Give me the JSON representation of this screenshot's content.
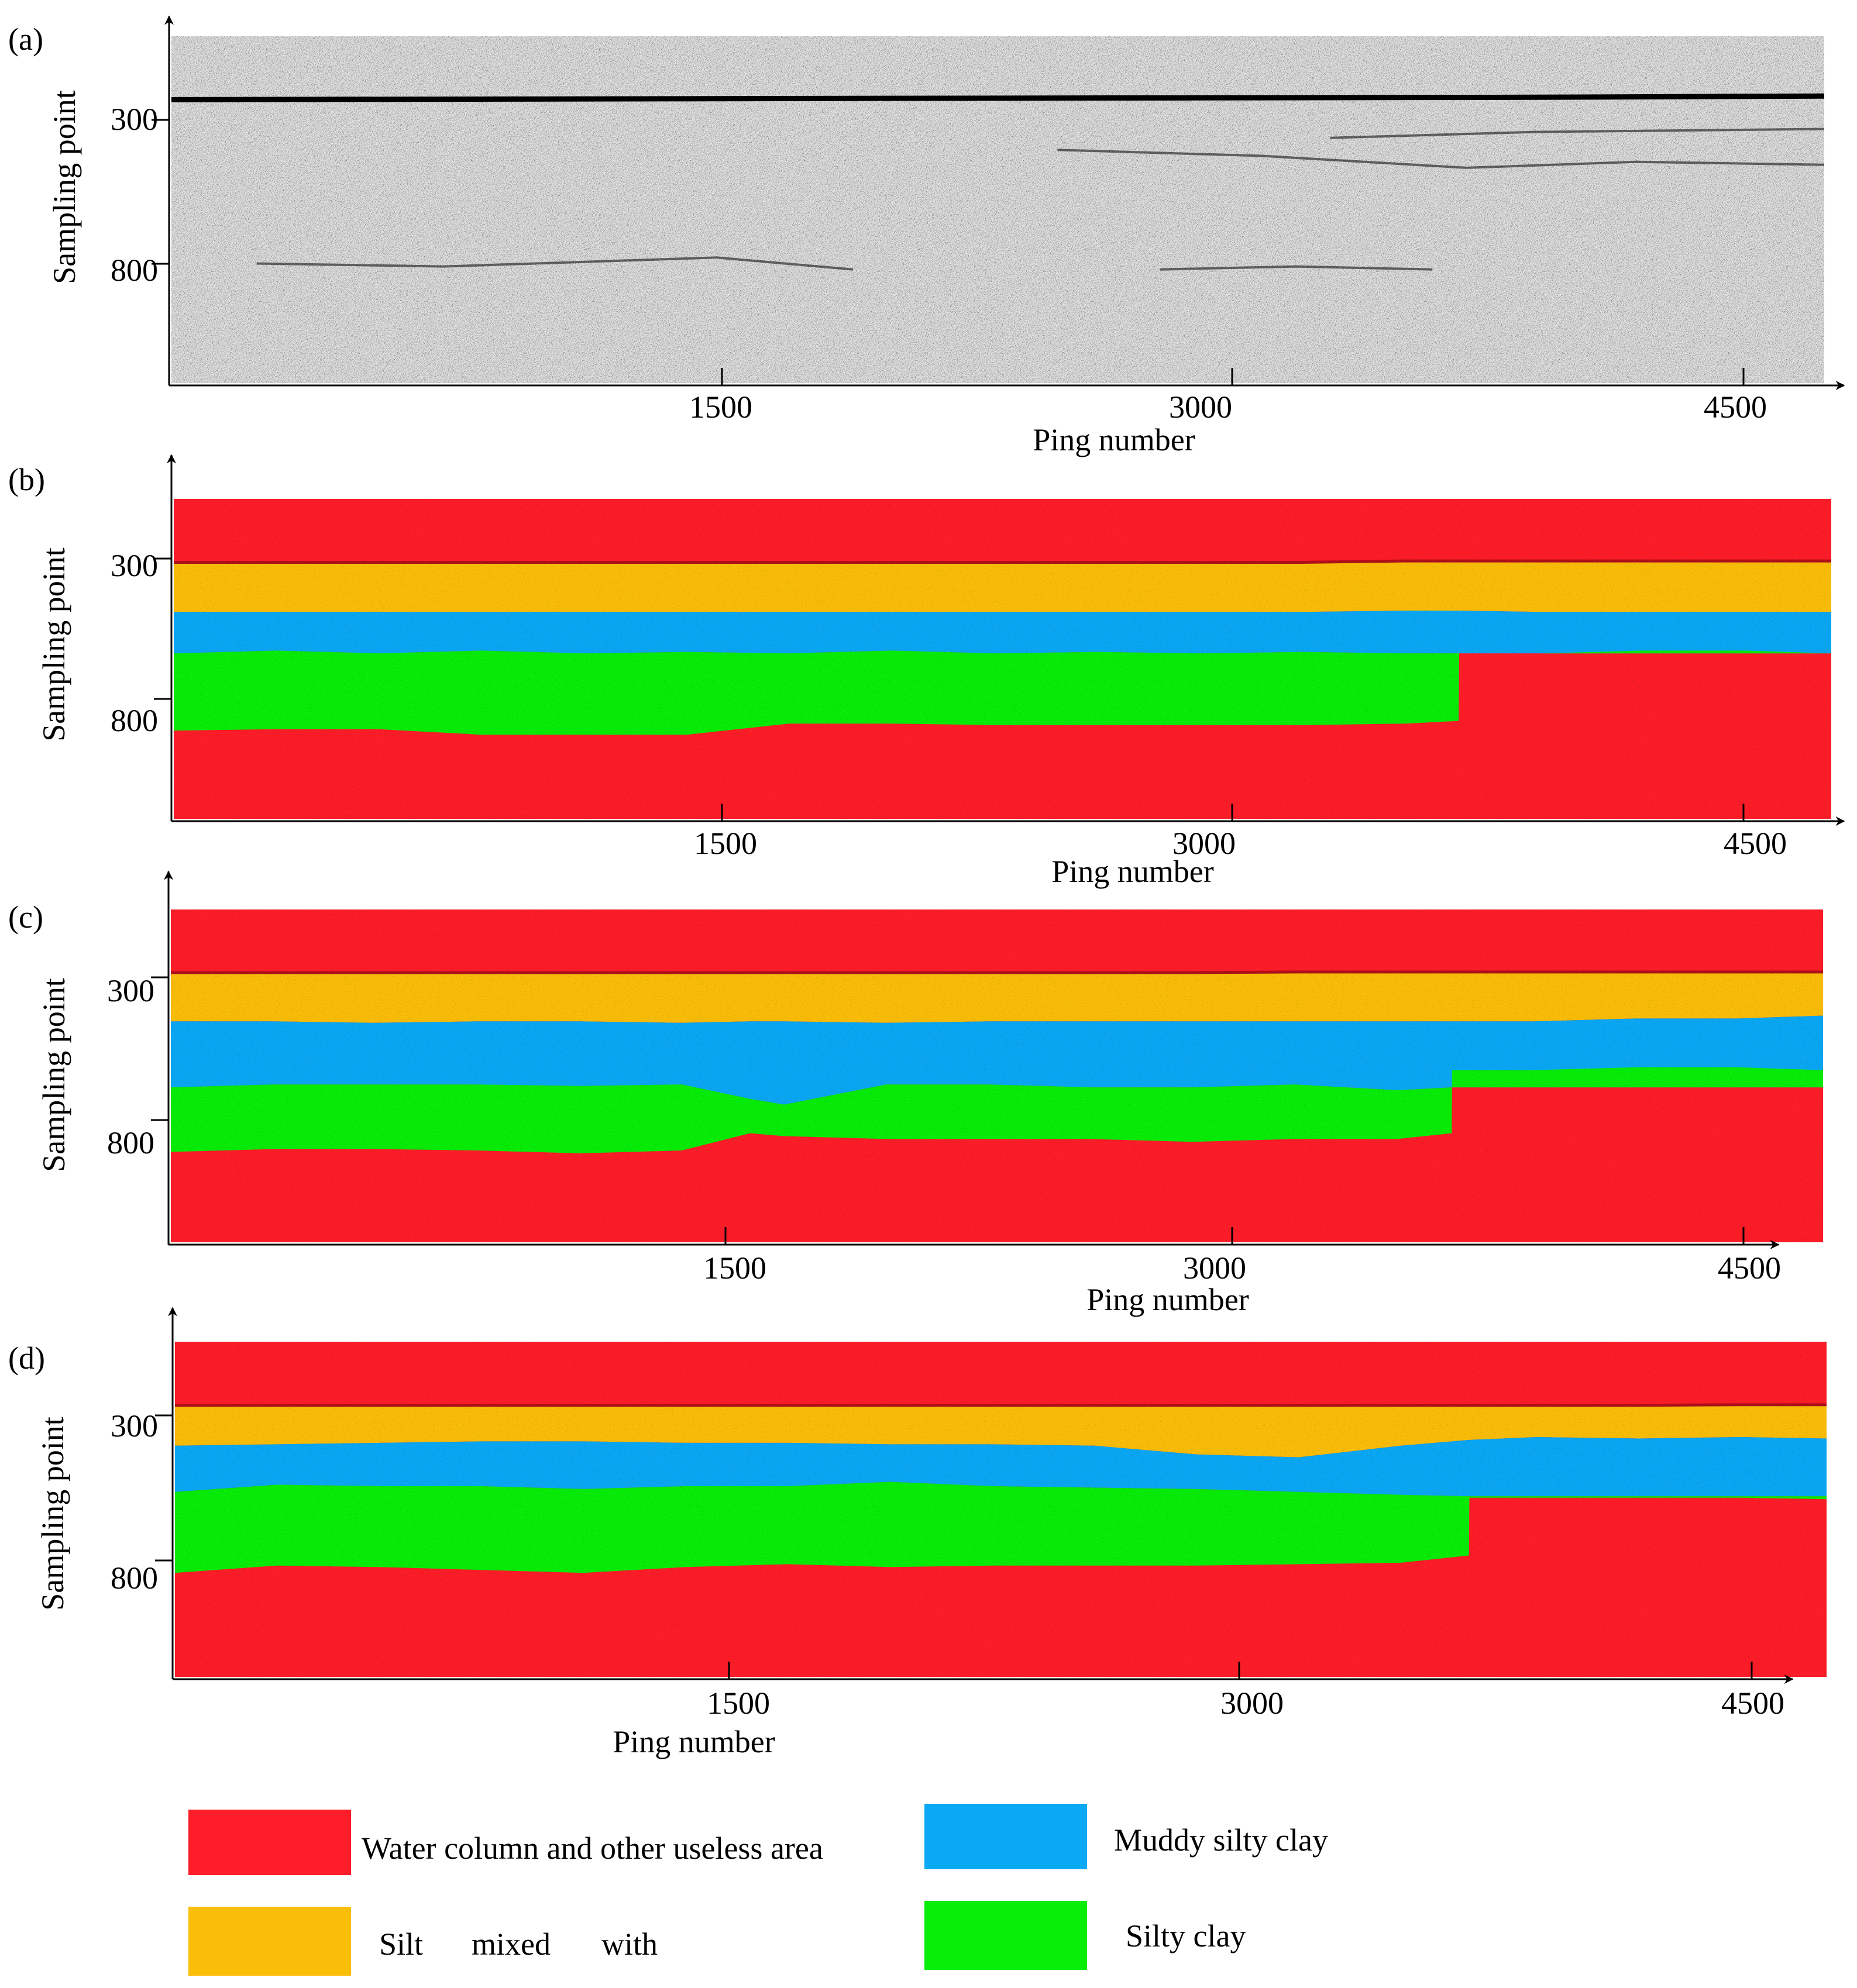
{
  "chart_data": [
    {
      "type": "heatmap",
      "panel": "(a)",
      "style": "grayscale",
      "title": "",
      "xlabel": "Ping number",
      "ylabel": "Sampling point",
      "xticks": [
        1500,
        3000,
        4500
      ],
      "yticks": [
        300,
        800
      ],
      "xlim": [
        0,
        4850
      ],
      "ylim": [
        1200,
        40
      ],
      "reflectors": [
        {
          "name": "seafloor",
          "x": [
            0,
            1000,
            2000,
            3000,
            4000,
            4850
          ],
          "y": [
            252,
            250,
            248,
            246,
            244,
            240
          ]
        },
        {
          "name": "subbottom-1",
          "x": [
            2600,
            3200,
            3800,
            4300,
            4850
          ],
          "y": [
            420,
            440,
            480,
            460,
            470
          ]
        },
        {
          "name": "subbottom-2",
          "x": [
            3400,
            4000,
            4850
          ],
          "y": [
            380,
            360,
            350
          ]
        },
        {
          "name": "deep-1",
          "x": [
            250,
            800,
            1600,
            2000
          ],
          "y": [
            800,
            810,
            780,
            820
          ]
        },
        {
          "name": "deep-2",
          "x": [
            2900,
            3300,
            3700
          ],
          "y": [
            820,
            810,
            820
          ]
        }
      ]
    },
    {
      "type": "heatmap",
      "panel": "(b)",
      "style": "classification",
      "xlabel": "Ping number",
      "ylabel": "Sampling point",
      "xticks": [
        1500,
        3000,
        4500
      ],
      "yticks": [
        300,
        800
      ],
      "xlim": [
        0,
        4850
      ],
      "ylim": [
        1200,
        40
      ],
      "layer_x": [
        0,
        300,
        600,
        900,
        1200,
        1500,
        1800,
        2100,
        2400,
        2700,
        3000,
        3300,
        3600,
        3760,
        3761,
        4000,
        4300,
        4600,
        4850
      ],
      "boundaries": {
        "water_bottom": [
          270,
          270,
          270,
          270,
          270,
          270,
          270,
          270,
          270,
          270,
          270,
          270,
          265,
          265,
          265,
          265,
          265,
          265,
          265
        ],
        "silt_bottom": [
          450,
          450,
          450,
          450,
          450,
          450,
          450,
          450,
          450,
          450,
          450,
          450,
          445,
          445,
          445,
          450,
          450,
          450,
          450
        ],
        "muddy_bottom": [
          600,
          590,
          600,
          590,
          600,
          595,
          600,
          590,
          600,
          595,
          600,
          595,
          600,
          600,
          600,
          600,
          600,
          600,
          600
        ],
        "silty_bottom": [
          880,
          875,
          875,
          895,
          895,
          895,
          855,
          855,
          860,
          860,
          860,
          860,
          855,
          845,
          600,
          600,
          590,
          590,
          600
        ]
      }
    },
    {
      "type": "heatmap",
      "panel": "(c)",
      "style": "classification",
      "xlabel": "Ping number",
      "ylabel": "Sampling point",
      "xticks": [
        1500,
        3000,
        4500
      ],
      "yticks": [
        300,
        800
      ],
      "xlim": [
        0,
        4850
      ],
      "ylim": [
        1200,
        40
      ],
      "layer_x": [
        0,
        300,
        600,
        900,
        1200,
        1500,
        1700,
        1800,
        2100,
        2400,
        2700,
        3000,
        3300,
        3600,
        3760,
        3761,
        4000,
        4300,
        4600,
        4850
      ],
      "boundaries": {
        "water_bottom": [
          260,
          260,
          260,
          260,
          260,
          260,
          260,
          260,
          260,
          260,
          260,
          260,
          258,
          258,
          258,
          258,
          258,
          258,
          258,
          258
        ],
        "silt_bottom": [
          430,
          430,
          435,
          430,
          430,
          435,
          430,
          430,
          435,
          430,
          430,
          430,
          430,
          430,
          430,
          430,
          430,
          420,
          420,
          410
        ],
        "muddy_bottom": [
          660,
          650,
          650,
          650,
          655,
          650,
          700,
          720,
          650,
          650,
          660,
          660,
          650,
          670,
          660,
          660,
          660,
          660,
          660,
          660
        ],
        "silty_bottom": [
          885,
          875,
          875,
          880,
          890,
          880,
          820,
          830,
          840,
          840,
          840,
          850,
          840,
          840,
          820,
          600,
          600,
          590,
          590,
          600
        ]
      }
    },
    {
      "type": "heatmap",
      "panel": "(d)",
      "style": "classification",
      "xlabel": "Ping number",
      "ylabel": "Sampling point",
      "xticks": [
        1500,
        3000,
        4500
      ],
      "yticks": [
        300,
        800
      ],
      "xlim": [
        0,
        4850
      ],
      "ylim": [
        1200,
        40
      ],
      "layer_x": [
        0,
        300,
        600,
        900,
        1200,
        1500,
        1800,
        2100,
        2400,
        2700,
        3000,
        3300,
        3600,
        3800,
        3801,
        4000,
        4300,
        4600,
        4850
      ],
      "boundaries": {
        "water_bottom": [
          260,
          260,
          260,
          260,
          260,
          260,
          260,
          260,
          260,
          260,
          260,
          260,
          260,
          260,
          260,
          260,
          260,
          258,
          258
        ],
        "silt_bottom": [
          400,
          395,
          390,
          385,
          385,
          390,
          390,
          395,
          395,
          400,
          430,
          440,
          400,
          380,
          380,
          370,
          375,
          370,
          375
        ],
        "muddy_bottom": [
          560,
          535,
          540,
          540,
          550,
          540,
          540,
          525,
          540,
          545,
          550,
          560,
          570,
          575,
          575,
          575,
          575,
          575,
          575
        ],
        "silty_bottom": [
          840,
          815,
          820,
          830,
          840,
          820,
          810,
          820,
          815,
          815,
          815,
          810,
          805,
          780,
          580,
          580,
          580,
          580,
          585
        ]
      }
    }
  ],
  "panels": {
    "a": {
      "label": "(a)",
      "ylabel": "Sampling point",
      "xlabel": "Ping number",
      "xtick_1": "1500",
      "xtick_2": "3000",
      "xtick_3": "4500",
      "ytick_1": "300",
      "ytick_2": "800"
    },
    "b": {
      "label": "(b)",
      "ylabel": "Sampling point",
      "xlabel": "Ping number",
      "xtick_1": "1500",
      "xtick_2": "3000",
      "xtick_3": "4500",
      "ytick_1": "300",
      "ytick_2": "800"
    },
    "c": {
      "label": "(c)",
      "ylabel": "Sampling point",
      "xlabel": "Ping number",
      "xtick_1": "1500",
      "xtick_2": "3000",
      "xtick_3": "4500",
      "ytick_1": "300",
      "ytick_2": "800"
    },
    "d": {
      "label": "(d)",
      "ylabel": "Sampling point",
      "xlabel": "Ping number",
      "xtick_1": "1500",
      "xtick_2": "3000",
      "xtick_3": "4500",
      "ytick_1": "300",
      "ytick_2": "800"
    }
  },
  "legend": {
    "water": {
      "label": "Water column and other useless area",
      "color": "#fe1d28"
    },
    "muddy": {
      "label": "Muddy silty clay",
      "color": "#0aa8f5"
    },
    "silt": {
      "label": "Silt mixed with",
      "label_parts": [
        "Silt",
        "mixed",
        "with"
      ],
      "color": "#fbbe08"
    },
    "silty": {
      "label": "Silty clay",
      "color": "#08ee08"
    }
  },
  "colors": {
    "water": "#fe1d28",
    "silt": "#fbbe08",
    "muddy": "#0aa8f5",
    "silty": "#08ee08",
    "gray_background": "#e2e2e2",
    "axis": "#000000"
  }
}
